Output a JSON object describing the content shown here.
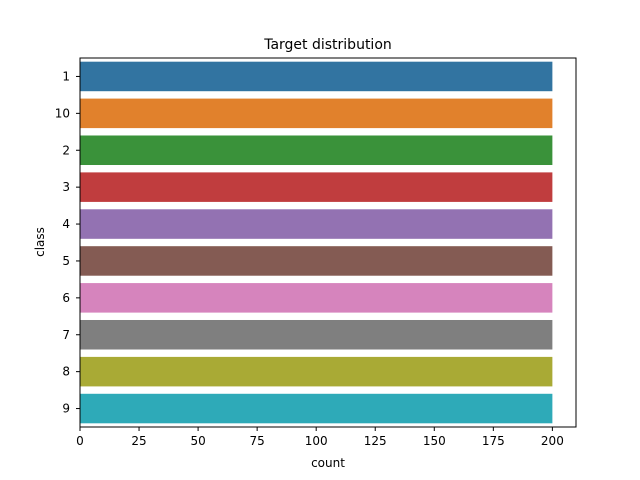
{
  "chart_data": {
    "type": "bar",
    "orientation": "horizontal",
    "title": "Target distribution",
    "xlabel": "count",
    "ylabel": "class",
    "categories": [
      "1",
      "10",
      "2",
      "3",
      "4",
      "5",
      "6",
      "7",
      "8",
      "9"
    ],
    "values": [
      200,
      200,
      200,
      200,
      200,
      200,
      200,
      200,
      200,
      200
    ],
    "xlim": [
      0,
      210
    ],
    "xticks": [
      0,
      25,
      50,
      75,
      100,
      125,
      150,
      175,
      200
    ],
    "grid": false,
    "colors": [
      "#3274a1",
      "#e1812c",
      "#3a923a",
      "#c03d3e",
      "#9372b2",
      "#845b53",
      "#d684bd",
      "#7f7f7f",
      "#a9aa35",
      "#2eaab8"
    ]
  }
}
